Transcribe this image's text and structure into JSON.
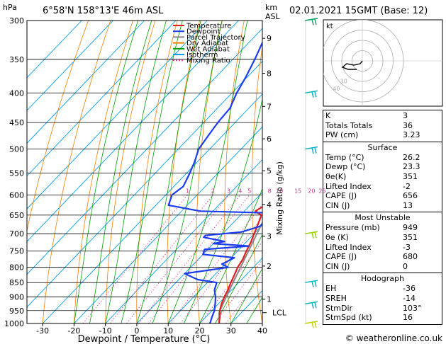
{
  "header": {
    "hpa_label": "hPa",
    "location": "6°58'N  158°13'E  46m  ASL",
    "km_label": "km",
    "asl_label": "ASL",
    "datetime": "02.01.2021  15GMT  (Base: 12)"
  },
  "legend": [
    {
      "label": "Temperature",
      "color": "#e02020"
    },
    {
      "label": "Dewpoint",
      "color": "#1c3cf0"
    },
    {
      "label": "Parcel Trajectory",
      "color": "#888888"
    },
    {
      "label": "Dry Adiabat",
      "color": "#f08000"
    },
    {
      "label": "Wet Adiabat",
      "color": "#00a000"
    },
    {
      "label": "Isotherm",
      "color": "#00a0f0"
    },
    {
      "label": "Mixing Ratio",
      "color": "#e040a0"
    }
  ],
  "footer": {
    "copyright": "© weatheronline.co.uk"
  },
  "hodograph": {
    "kt_label": "kt",
    "ring_labels": [
      "40",
      "30"
    ]
  },
  "indices_box": {
    "rows": [
      {
        "label": "K",
        "value": "3"
      },
      {
        "label": "Totals Totals",
        "value": "36"
      },
      {
        "label": "PW (cm)",
        "value": "3.23"
      }
    ]
  },
  "surface_box": {
    "title": "Surface",
    "rows": [
      {
        "label": "Temp (°C)",
        "value": "26.2"
      },
      {
        "label": "Dewp (°C)",
        "value": "23.3"
      },
      {
        "label": "θe(K)",
        "value": "351"
      },
      {
        "label": "Lifted Index",
        "value": "-2"
      },
      {
        "label": "CAPE (J)",
        "value": "656"
      },
      {
        "label": "CIN (J)",
        "value": "13"
      }
    ]
  },
  "unstable_box": {
    "title": "Most Unstable",
    "rows": [
      {
        "label": "Pressure (mb)",
        "value": "949"
      },
      {
        "label": "θe (K)",
        "value": "351"
      },
      {
        "label": "Lifted Index",
        "value": "-3"
      },
      {
        "label": "CAPE (J)",
        "value": "680"
      },
      {
        "label": "CIN (J)",
        "value": "0"
      }
    ]
  },
  "hodograph_box": {
    "title": "Hodograph",
    "rows": [
      {
        "label": "EH",
        "value": "-36"
      },
      {
        "label": "SREH",
        "value": "-14"
      },
      {
        "label": "StmDir",
        "value": "103°"
      },
      {
        "label": "StmSpd (kt)",
        "value": "16"
      }
    ]
  },
  "chart_data": {
    "type": "line",
    "title": "6°58'N  158°13'E  46m  ASL",
    "xlabel": "Dewpoint / Temperature (°C)",
    "ylabel": "hPa",
    "y2label": "Mixing Ratio (g/kg)",
    "xlim": [
      -35,
      40
    ],
    "ylim": [
      1000,
      300
    ],
    "y_log": true,
    "x_ticks": [
      -30,
      -20,
      -10,
      0,
      10,
      20,
      30,
      40
    ],
    "pressure_levels": [
      300,
      350,
      400,
      450,
      500,
      550,
      600,
      650,
      700,
      750,
      800,
      850,
      900,
      950,
      1000
    ],
    "km_ticks": [
      {
        "km": "1",
        "p": 908
      },
      {
        "km": "2",
        "p": 796
      },
      {
        "km": "3",
        "p": 707
      },
      {
        "km": "4",
        "p": 623
      },
      {
        "km": "5",
        "p": 545
      },
      {
        "km": "6",
        "p": 480
      },
      {
        "km": "7",
        "p": 422
      },
      {
        "km": "8",
        "p": 370
      },
      {
        "km": "9",
        "p": 322
      }
    ],
    "lcl": {
      "label": "LCL",
      "p": 958
    },
    "mixing_ratio_labels": [
      "1",
      "2",
      "3",
      "4",
      "5",
      "8",
      "10",
      "15",
      "20",
      "25"
    ],
    "mixing_ratio_values": [
      1,
      2,
      3,
      4,
      5,
      8,
      10,
      15,
      20,
      25
    ],
    "series": [
      {
        "name": "Temperature",
        "color": "#e02020",
        "points": [
          [
            1000,
            26.2
          ],
          [
            975,
            24.5
          ],
          [
            950,
            22.5
          ],
          [
            925,
            21.0
          ],
          [
            900,
            19.8
          ],
          [
            875,
            18.8
          ],
          [
            850,
            17.5
          ],
          [
            825,
            16.3
          ],
          [
            800,
            15.0
          ],
          [
            775,
            14.2
          ],
          [
            750,
            12.8
          ],
          [
            725,
            11.6
          ],
          [
            700,
            10.0
          ],
          [
            675,
            8.4
          ],
          [
            650,
            6.6
          ],
          [
            640,
            3.5
          ],
          [
            625,
            4.8
          ],
          [
            600,
            3.0
          ],
          [
            575,
            1.3
          ],
          [
            550,
            -0.6
          ],
          [
            525,
            -2.8
          ],
          [
            500,
            -5.2
          ],
          [
            475,
            -7.8
          ],
          [
            450,
            -10.7
          ],
          [
            425,
            -13.8
          ],
          [
            400,
            -17.2
          ],
          [
            375,
            -21.5
          ],
          [
            362,
            -25.0
          ]
        ]
      },
      {
        "name": "Dewpoint",
        "color": "#1c3cf0",
        "points": [
          [
            1000,
            23.3
          ],
          [
            975,
            22.0
          ],
          [
            950,
            20.8
          ],
          [
            925,
            19.0
          ],
          [
            900,
            17.0
          ],
          [
            875,
            14.5
          ],
          [
            850,
            13.0
          ],
          [
            840,
            6.0
          ],
          [
            820,
            0.0
          ],
          [
            800,
            12.0
          ],
          [
            790,
            9.0
          ],
          [
            770,
            11.0
          ],
          [
            760,
            0.0
          ],
          [
            745,
            -1.0
          ],
          [
            735,
            12.0
          ],
          [
            728,
            0.0
          ],
          [
            722,
            3.0
          ],
          [
            710,
            -5.0
          ],
          [
            705,
            -5.0
          ],
          [
            695,
            5.5
          ],
          [
            680,
            9.5
          ],
          [
            660,
            10.0
          ],
          [
            645,
            11.0
          ],
          [
            640,
            -14.0
          ],
          [
            625,
            -26.0
          ],
          [
            600,
            -28.0
          ],
          [
            580,
            -27.0
          ],
          [
            550,
            -29.0
          ],
          [
            525,
            -31.0
          ],
          [
            500,
            -33.5
          ],
          [
            475,
            -34.5
          ],
          [
            450,
            -35.5
          ],
          [
            425,
            -36.0
          ],
          [
            400,
            -38.5
          ],
          [
            375,
            -40.5
          ],
          [
            350,
            -43.0
          ],
          [
            325,
            -46.0
          ],
          [
            300,
            -49.0
          ]
        ]
      },
      {
        "name": "Parcel Trajectory",
        "color": "#888888",
        "points": [
          [
            1000,
            26.2
          ],
          [
            958,
            22.9
          ],
          [
            925,
            21.5
          ],
          [
            900,
            20.4
          ],
          [
            850,
            18.2
          ],
          [
            800,
            15.9
          ],
          [
            750,
            13.5
          ],
          [
            700,
            10.9
          ],
          [
            650,
            8.1
          ],
          [
            600,
            4.9
          ],
          [
            550,
            1.2
          ],
          [
            500,
            -3.1
          ],
          [
            450,
            -8.2
          ],
          [
            400,
            -14.5
          ],
          [
            375,
            -18.3
          ]
        ]
      }
    ],
    "hodograph_points": [
      [
        0,
        0
      ],
      [
        -3,
        4
      ],
      [
        -12,
        6
      ],
      [
        -22,
        4
      ],
      [
        -28,
        9
      ],
      [
        -20,
        12
      ],
      [
        -8,
        12
      ]
    ]
  }
}
